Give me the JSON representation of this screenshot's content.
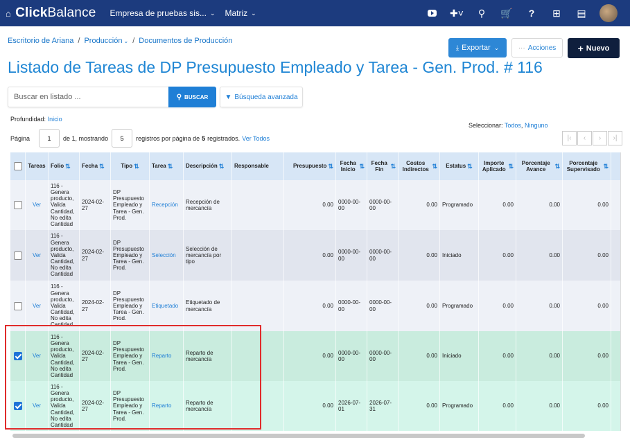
{
  "topbar": {
    "brand_icon": "home-icon",
    "brand_bold": "Click",
    "brand_rest": "Balance",
    "company": "Empresa de pruebas sis...",
    "matriz": "Matriz",
    "icons": [
      "youtube-icon",
      "plus-icon",
      "search-icon",
      "cart-icon",
      "help-icon",
      "apps-grid-icon",
      "calendar-icon",
      "avatar"
    ]
  },
  "breadcrumb": {
    "items": [
      "Escritorio de Ariana",
      "Producción",
      "Documentos de Producción"
    ],
    "separator": "/"
  },
  "actions": {
    "export_label": "Exportar",
    "acciones_label": "Acciones",
    "nuevo_label": "Nuevo"
  },
  "title": "Listado de Tareas de DP Presupuesto Empleado y Tarea - Gen. Prod. # 116",
  "search": {
    "placeholder": "Buscar en listado ...",
    "button_label": "BUSCAR",
    "advanced_label": "Búsqueda avanzada"
  },
  "depth": {
    "label": "Profundidad:",
    "value": "Inicio"
  },
  "select": {
    "label": "Seleccionar:",
    "all": "Todos",
    "sep": ",",
    "none": "Ninguno"
  },
  "paging": {
    "page_label": "Página",
    "page_value": "1",
    "of_text": "de 1, mostrando",
    "per_page_value": "5",
    "suffix_text": "registros por página de",
    "total": "5",
    "registered": "registrados.",
    "view_all": "Ver Todos"
  },
  "table": {
    "headers": [
      "",
      "Tareas",
      "Folio",
      "Fecha",
      "Tipo",
      "Tarea",
      "Descripción",
      "Responsable",
      "Presupuesto",
      "Fecha Inicio",
      "Fecha Fin",
      "Costos Indirectos",
      "Estatus",
      "Importe Aplicado",
      "Porcentaje Avance",
      "Porcentaje Supervisado"
    ],
    "rows": [
      {
        "checked": false,
        "ver": "Ver",
        "folio": "116 - Genera producto, Valida Cantidad, No edita Cantidad",
        "fecha": "2024-02-27",
        "tipo": "DP Presupuesto Empleado y Tarea - Gen. Prod.",
        "tarea": "Recepción",
        "descripcion": "Recepción de mercancía",
        "responsable": "",
        "presupuesto": "0.00",
        "inicio": "0000-00-00",
        "fin": "0000-00-00",
        "costos": "0.00",
        "estatus": "Programado",
        "importe": "0.00",
        "avance": "0.00",
        "supervisado": "0.00"
      },
      {
        "checked": false,
        "ver": "Ver",
        "folio": "116 - Genera producto, Valida Cantidad, No edita Cantidad",
        "fecha": "2024-02-27",
        "tipo": "DP Presupuesto Empleado y Tarea - Gen. Prod.",
        "tarea": "Selección",
        "descripcion": "Selección de mercancía por tipo",
        "responsable": "",
        "presupuesto": "0.00",
        "inicio": "0000-00-00",
        "fin": "0000-00-00",
        "costos": "0.00",
        "estatus": "Iniciado",
        "importe": "0.00",
        "avance": "0.00",
        "supervisado": "0.00"
      },
      {
        "checked": false,
        "ver": "Ver",
        "folio": "116 - Genera producto, Valida Cantidad, No edita Cantidad",
        "fecha": "2024-02-27",
        "tipo": "DP Presupuesto Empleado y Tarea - Gen. Prod.",
        "tarea": "Etiquetado",
        "descripcion": "Etiquetado de mercancía",
        "responsable": "",
        "presupuesto": "0.00",
        "inicio": "0000-00-00",
        "fin": "0000-00-00",
        "costos": "0.00",
        "estatus": "Programado",
        "importe": "0.00",
        "avance": "0.00",
        "supervisado": "0.00"
      },
      {
        "checked": true,
        "ver": "Ver",
        "folio": "116 - Genera producto, Valida Cantidad, No edita Cantidad",
        "fecha": "2024-02-27",
        "tipo": "DP Presupuesto Empleado y Tarea - Gen. Prod.",
        "tarea": "Reparto",
        "descripcion": "Reparto de mercancía",
        "responsable": "",
        "presupuesto": "0.00",
        "inicio": "0000-00-00",
        "fin": "0000-00-00",
        "costos": "0.00",
        "estatus": "Iniciado",
        "importe": "0.00",
        "avance": "0.00",
        "supervisado": "0.00"
      },
      {
        "checked": true,
        "ver": "Ver",
        "folio": "116 - Genera producto, Valida Cantidad, No edita Cantidad",
        "fecha": "2024-02-27",
        "tipo": "DP Presupuesto Empleado y Tarea - Gen. Prod.",
        "tarea": "Reparto",
        "descripcion": "Reparto de mercancía",
        "responsable": "",
        "presupuesto": "0.00",
        "inicio": "2026-07-01",
        "fin": "2026-07-31",
        "costos": "0.00",
        "estatus": "Programado",
        "importe": "0.00",
        "avance": "0.00",
        "supervisado": "0.00"
      }
    ]
  },
  "colors": {
    "topbar": "#1c3b7e",
    "accent": "#1f86d4",
    "selected_row": "#c9ecde",
    "highlight_border": "#e02b2b"
  }
}
